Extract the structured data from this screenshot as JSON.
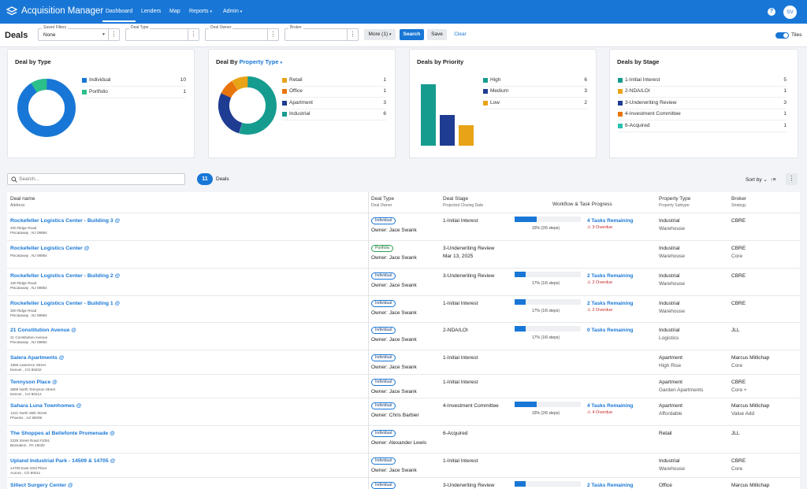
{
  "app": {
    "title": "Acquisition Manager",
    "user_initials": "SV"
  },
  "nav": {
    "dashboard": "Dashboard",
    "lenders": "Lenders",
    "map": "Map",
    "reports": "Reports",
    "admin": "Admin"
  },
  "filters": {
    "page_title": "Deals",
    "saved_filters_label": "Saved Filters",
    "saved_filters_value": "None",
    "deal_type_label": "Deal Type",
    "deal_owner_label": "Deal Owner",
    "broker_label": "Broker",
    "more_label": "More (1)",
    "search_label": "Search",
    "save_label": "Save",
    "clear_label": "Clear",
    "tiles_label": "Tiles"
  },
  "cards": {
    "by_type": {
      "title": "Deal by Type",
      "items": [
        {
          "label": "Individual",
          "count": "10",
          "color": "#1877d6"
        },
        {
          "label": "Portfolio",
          "count": "1",
          "color": "#2bbf8a"
        }
      ]
    },
    "by_property": {
      "title_prefix": "Deal By",
      "title_link": "Property Type",
      "items": [
        {
          "label": "Retail",
          "count": "1",
          "color": "#e8a317"
        },
        {
          "label": "Office",
          "count": "1",
          "color": "#e8740c"
        },
        {
          "label": "Apartment",
          "count": "3",
          "color": "#1f3c93"
        },
        {
          "label": "Industrial",
          "count": "6",
          "color": "#169c8f"
        }
      ]
    },
    "by_priority": {
      "title": "Deals by Priority",
      "items": [
        {
          "label": "High",
          "count": "6",
          "color": "#169c8f"
        },
        {
          "label": "Medium",
          "count": "3",
          "color": "#1f3c93"
        },
        {
          "label": "Low",
          "count": "2",
          "color": "#e8a317"
        }
      ]
    },
    "by_stage": {
      "title": "Deals by Stage",
      "items": [
        {
          "label": "1-Initial Interest",
          "count": "5",
          "color": "#169c8f"
        },
        {
          "label": "2-NDA/LOI",
          "count": "1",
          "color": "#e8a317"
        },
        {
          "label": "3-Underwriting Review",
          "count": "3",
          "color": "#1f3c93"
        },
        {
          "label": "4-Investment Committee",
          "count": "1",
          "color": "#e8740c"
        },
        {
          "label": "6-Acquired",
          "count": "1",
          "color": "#2bbfb0"
        }
      ]
    }
  },
  "list": {
    "search_placeholder": "Search...",
    "count": "11",
    "count_label": "Deals",
    "sort_label": "Sort by"
  },
  "columns": {
    "name": "Deal name",
    "name_sub": "Address",
    "type": "Deal Type",
    "type_sub": "Deal Owner",
    "stage": "Deal Stage",
    "stage_sub": "Projected Closing Date",
    "progress": "Workflow & Task Progress",
    "ptype": "Property Type",
    "ptype_sub": "Property Subtype",
    "broker": "Broker",
    "broker_sub": "Strategy"
  },
  "deals": [
    {
      "name": "Rockefeller Logistics Center - Building 3",
      "addr1": "200 Ridge Road",
      "addr2": "Piscataway , NJ 08854",
      "type": "Individual",
      "owner": "Owner: Jace Swank",
      "stage": "1-Initial Interest",
      "close": "",
      "progress": 0.33,
      "pct": "33% (2/6 steps)",
      "tasks": "4 Tasks Remaining",
      "overdue": "3 Overdue",
      "ptype": "Industrial",
      "psub": "Warehouse",
      "broker": "CBRE",
      "strategy": ""
    },
    {
      "name": "Rockefeller Logistics Center",
      "addr1": "Piscataway , NJ 08854",
      "addr2": "",
      "type": "Portfolio",
      "owner": "Owner: Jace Swank",
      "stage": "3-Underwriting Review",
      "close": "Mar 13, 2025",
      "progress": null,
      "pct": "",
      "tasks": "",
      "overdue": "",
      "ptype": "Industrial",
      "psub": "Warehouse",
      "broker": "CBRE",
      "strategy": "Core"
    },
    {
      "name": "Rockefeller Logistics Center - Building 2",
      "addr1": "100 Ridge Road",
      "addr2": "Piscataway , NJ 08854",
      "type": "Individual",
      "owner": "Owner: Jace Swank",
      "stage": "3-Underwriting Review",
      "close": "",
      "progress": 0.17,
      "pct": "17% (1/6 steps)",
      "tasks": "2 Tasks Remaining",
      "overdue": "2 Overdue",
      "ptype": "Industrial",
      "psub": "Warehouse",
      "broker": "CBRE",
      "strategy": ""
    },
    {
      "name": "Rockefeller Logistics Center - Building 1",
      "addr1": "300 Ridge Road",
      "addr2": "Piscataway , NJ 08854",
      "type": "Individual",
      "owner": "Owner: Jace Swank",
      "stage": "1-Initial Interest",
      "close": "",
      "progress": 0.17,
      "pct": "17% (1/6 steps)",
      "tasks": "2 Tasks Remaining",
      "overdue": "2 Overdue",
      "ptype": "Industrial",
      "psub": "Warehouse",
      "broker": "CBRE",
      "strategy": ""
    },
    {
      "name": "21 Constitution Avenue",
      "addr1": "21 Constitution Avenue",
      "addr2": "Piscataway , NJ 08854",
      "type": "Individual",
      "owner": "Owner: Jace Swank",
      "stage": "2-NDA/LOI",
      "close": "",
      "progress": 0.17,
      "pct": "17% (1/6 steps)",
      "tasks": "0 Tasks Remaining",
      "overdue": "",
      "ptype": "Industrial",
      "psub": "Logistics",
      "broker": "JLL",
      "strategy": ""
    },
    {
      "name": "Salera Apartments",
      "addr1": "1856 Lawrence Street",
      "addr2": "Denver , CO 80202",
      "type": "Individual",
      "owner": "Owner: Jace Swank",
      "stage": "1-Initial Interest",
      "close": "",
      "progress": null,
      "pct": "",
      "tasks": "",
      "overdue": "",
      "ptype": "Apartment",
      "psub": "High Rise",
      "broker": "Marcus Millichap",
      "strategy": "Core"
    },
    {
      "name": "Tennyson Place",
      "addr1": "3889 North Tennyson Street",
      "addr2": "Denver , CO 80212",
      "type": "Individual",
      "owner": "Owner: Jace Swank",
      "stage": "1-Initial Interest",
      "close": "",
      "progress": null,
      "pct": "",
      "tasks": "",
      "overdue": "",
      "ptype": "Apartment",
      "psub": "Garden Apartments",
      "broker": "CBRE",
      "strategy": "Core +"
    },
    {
      "name": "Sahara Luna Townhomes",
      "addr1": "1221 North 35th Street",
      "addr2": "Phoenix , AZ 85008",
      "type": "Individual",
      "owner": "Owner: Chris Barbier",
      "stage": "4-Investment Committee",
      "close": "",
      "progress": 0.33,
      "pct": "33% (2/6 steps)",
      "tasks": "4 Tasks Remaining",
      "overdue": "4 Overdue",
      "ptype": "Apartment",
      "psub": "Affordable",
      "broker": "Marcus Millichap",
      "strategy": "Value Add"
    },
    {
      "name": "The Shoppes at Bellefonte Promenade",
      "addr1": "2329 Street Road #1051",
      "addr2": "Bensalem , PA 19020",
      "type": "Individual",
      "owner": "Owner: Alexander Lewis",
      "stage": "6-Acquired",
      "close": "",
      "progress": null,
      "pct": "",
      "tasks": "",
      "overdue": "",
      "ptype": "Retail",
      "psub": "",
      "broker": "JLL",
      "strategy": ""
    },
    {
      "name": "Upland Industrial Park - 14509 & 14705",
      "addr1": "14705 East 33rd Place",
      "addr2": "Aurora , CO 80011",
      "type": "Individual",
      "owner": "Owner: Jace Swank",
      "stage": "1-Initial Interest",
      "close": "",
      "progress": null,
      "pct": "",
      "tasks": "",
      "overdue": "",
      "ptype": "Industrial",
      "psub": "Warehouse",
      "broker": "CBRE",
      "strategy": "Core"
    },
    {
      "name": "Sillect Surgery Center",
      "addr1": "",
      "addr2": "",
      "type": "Individual",
      "owner": "",
      "stage": "3-Underwriting Review",
      "close": "",
      "progress": 0.17,
      "pct": "",
      "tasks": "2 Tasks Remaining",
      "overdue": "",
      "ptype": "Office",
      "psub": "",
      "broker": "Marcus Millichap",
      "strategy": ""
    }
  ]
}
